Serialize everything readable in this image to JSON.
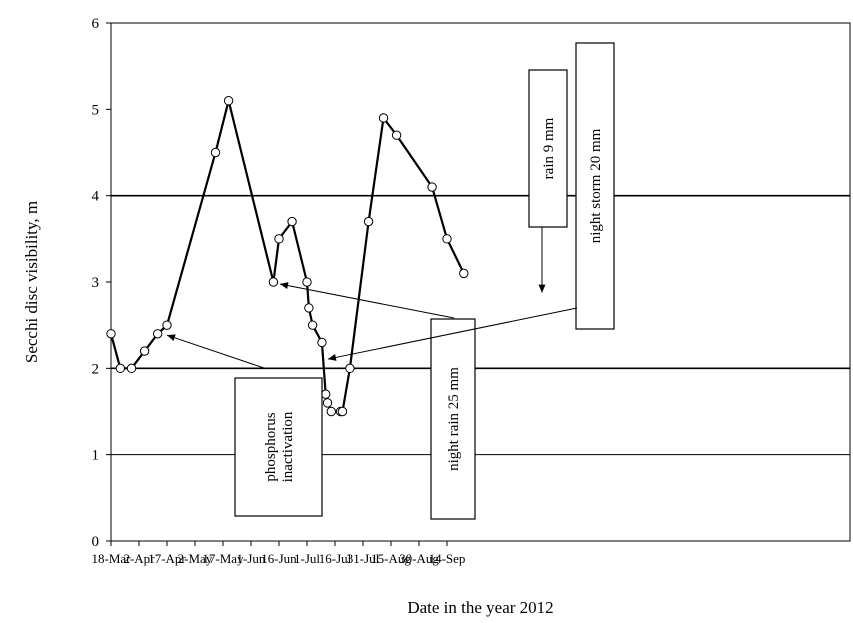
{
  "chart_data": {
    "type": "line",
    "title": "",
    "xlabel": "Date in the year 2012",
    "ylabel": "Secchi disc visibility, m",
    "ylim": [
      0,
      6
    ],
    "y_ticks": [
      0,
      1,
      2,
      3,
      4,
      5,
      6
    ],
    "x_tick_labels": [
      "18-Mar",
      "2-Apr",
      "17-Apr",
      "2-May",
      "17-May",
      "1-Jun",
      "16-Jun",
      "1-Jul",
      "16-Jul",
      "31-Jul",
      "15-Aug",
      "30-Aug",
      "14-Sep"
    ],
    "x_range": [
      "2012-03-18",
      "2012-09-23"
    ],
    "gridlines_y": [
      1,
      2,
      4
    ],
    "series": [
      {
        "points": [
          {
            "x": "2012-03-18",
            "y": 2.4
          },
          {
            "x": "2012-03-23",
            "y": 2.0
          },
          {
            "x": "2012-03-29",
            "y": 2.0
          },
          {
            "x": "2012-04-05",
            "y": 2.2
          },
          {
            "x": "2012-04-12",
            "y": 2.4
          },
          {
            "x": "2012-04-17",
            "y": 2.5
          },
          {
            "x": "2012-05-13",
            "y": 4.5
          },
          {
            "x": "2012-05-20",
            "y": 5.1
          },
          {
            "x": "2012-06-13",
            "y": 3.0
          },
          {
            "x": "2012-06-16",
            "y": 3.5
          },
          {
            "x": "2012-06-23",
            "y": 3.7
          },
          {
            "x": "2012-07-01",
            "y": 3.0
          },
          {
            "x": "2012-07-02",
            "y": 2.7
          },
          {
            "x": "2012-07-04",
            "y": 2.5
          },
          {
            "x": "2012-07-09",
            "y": 2.3
          },
          {
            "x": "2012-07-11",
            "y": 1.7
          },
          {
            "x": "2012-07-12",
            "y": 1.6
          },
          {
            "x": "2012-07-14",
            "y": 1.5
          },
          {
            "x": "2012-07-19",
            "y": 1.5
          },
          {
            "x": "2012-07-20",
            "y": 1.5
          },
          {
            "x": "2012-07-24",
            "y": 2.0
          },
          {
            "x": "2012-08-03",
            "y": 3.7
          },
          {
            "x": "2012-08-11",
            "y": 4.9
          },
          {
            "x": "2012-08-18",
            "y": 4.7
          },
          {
            "x": "2012-09-06",
            "y": 4.1
          },
          {
            "x": "2012-09-14",
            "y": 3.5
          },
          {
            "x": "2012-09-23",
            "y": 3.1
          }
        ]
      }
    ],
    "annotations": [
      {
        "text_lines": [
          "phosphorus",
          "inactivation"
        ],
        "points_to": {
          "x": "2012-04-17",
          "y": 2.5
        }
      },
      {
        "text_lines": [
          "night rain 25 mm"
        ],
        "points_to": {
          "x": "2012-06-16",
          "y": 3.0
        }
      },
      {
        "text_lines": [
          "rain 9 mm"
        ],
        "points_to": {
          "x": "2012-07-04",
          "y": 2.9
        }
      },
      {
        "text_lines": [
          "night storm 20 mm"
        ],
        "points_to": {
          "x": "2012-07-09",
          "y": 2.2
        }
      }
    ]
  }
}
